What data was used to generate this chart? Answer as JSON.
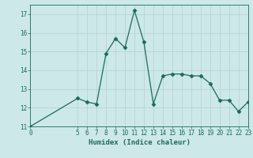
{
  "x": [
    0,
    5,
    6,
    7,
    8,
    9,
    10,
    11,
    12,
    13,
    14,
    15,
    16,
    17,
    18,
    19,
    20,
    21,
    22,
    23
  ],
  "y": [
    11,
    12.5,
    12.3,
    12.2,
    14.9,
    15.7,
    15.2,
    17.2,
    15.5,
    12.2,
    13.7,
    13.8,
    13.8,
    13.7,
    13.7,
    13.3,
    12.4,
    12.4,
    11.8,
    12.3
  ],
  "xlabel": "Humidex (Indice chaleur)",
  "xlim": [
    0,
    23
  ],
  "ylim": [
    11,
    17.5
  ],
  "yticks": [
    11,
    12,
    13,
    14,
    15,
    16,
    17
  ],
  "xticks": [
    0,
    5,
    6,
    7,
    8,
    9,
    10,
    11,
    12,
    13,
    14,
    15,
    16,
    17,
    18,
    19,
    20,
    21,
    22,
    23
  ],
  "line_color": "#1a6b5a",
  "marker": "D",
  "marker_size": 2.5,
  "bg_color": "#cce8e8",
  "grid_color": "#b8d4d4",
  "font_color": "#1a6b5a",
  "tick_fontsize": 5.5,
  "xlabel_fontsize": 6.5
}
